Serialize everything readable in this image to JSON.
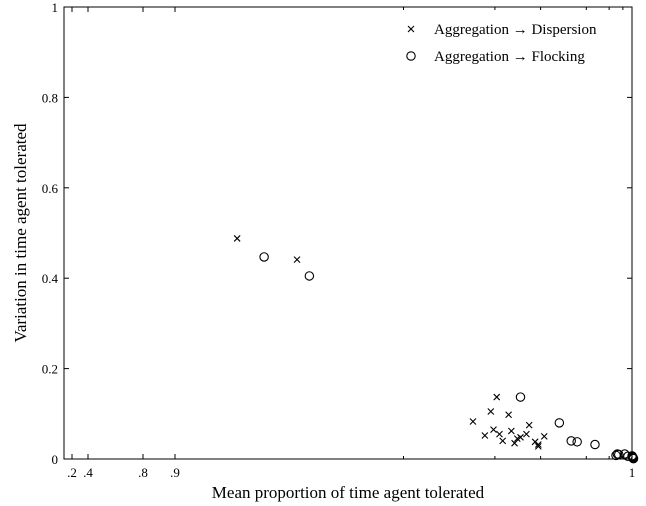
{
  "chart_data": {
    "type": "scatter",
    "title": "",
    "xlabel": "Mean proportion of time agent tolerated",
    "ylabel": "Variation in time agent tolerated",
    "xlim": [
      0,
      1
    ],
    "ylim": [
      0,
      1
    ],
    "x_scale": "nonlinear (tick labels printed as shown)",
    "x_ticks": [
      {
        "label": ".2",
        "value": 0.2
      },
      {
        "label": ".4",
        "value": 0.4
      },
      {
        "label": ".8",
        "value": 0.8
      },
      {
        "label": ".9",
        "value": 0.9
      },
      {
        "label": "1",
        "value": 1
      }
    ],
    "y_ticks": [
      {
        "label": "0",
        "value": 0
      },
      {
        "label": "0.2",
        "value": 0.2
      },
      {
        "label": "0.4",
        "value": 0.4
      },
      {
        "label": "0.6",
        "value": 0.6
      },
      {
        "label": "0.8",
        "value": 0.8
      },
      {
        "label": "1",
        "value": 1
      }
    ],
    "grid": false,
    "legend_position": "top-right",
    "series": [
      {
        "name": "Aggregation → Dispersion",
        "marker": "x",
        "points": [
          [
            0.9136,
            0.488
          ],
          [
            0.9267,
            0.441
          ],
          [
            0.9652,
            0.083
          ],
          [
            0.9678,
            0.052
          ],
          [
            0.9691,
            0.105
          ],
          [
            0.9697,
            0.065
          ],
          [
            0.9704,
            0.137
          ],
          [
            0.971,
            0.055
          ],
          [
            0.9717,
            0.04
          ],
          [
            0.973,
            0.098
          ],
          [
            0.9736,
            0.062
          ],
          [
            0.9743,
            0.035
          ],
          [
            0.9749,
            0.045
          ],
          [
            0.9756,
            0.048
          ],
          [
            0.9769,
            0.055
          ],
          [
            0.9775,
            0.075
          ],
          [
            0.9788,
            0.038
          ],
          [
            0.9795,
            0.032
          ],
          [
            0.9795,
            0.028
          ],
          [
            0.9808,
            0.05
          ]
        ]
      },
      {
        "name": "Aggregation → Flocking",
        "marker": "o",
        "points": [
          [
            0.9195,
            0.447
          ],
          [
            0.9294,
            0.405
          ],
          [
            0.9756,
            0.137
          ],
          [
            0.9841,
            0.08
          ],
          [
            0.9867,
            0.04
          ],
          [
            0.988,
            0.038
          ],
          [
            0.9919,
            0.032
          ],
          [
            0.9965,
            0.008
          ],
          [
            0.9968,
            0.011
          ],
          [
            0.9971,
            0.01
          ],
          [
            0.9984,
            0.011
          ],
          [
            0.9991,
            0.006
          ],
          [
            1.001,
            0.007
          ],
          [
            1.0017,
            0.005
          ],
          [
            1.0052,
            0.005
          ],
          [
            1.0105,
            0.004
          ],
          [
            1.0134,
            0.002
          ],
          [
            1.0164,
            0.001
          ],
          [
            1.0187,
            0.001
          ]
        ]
      }
    ]
  }
}
